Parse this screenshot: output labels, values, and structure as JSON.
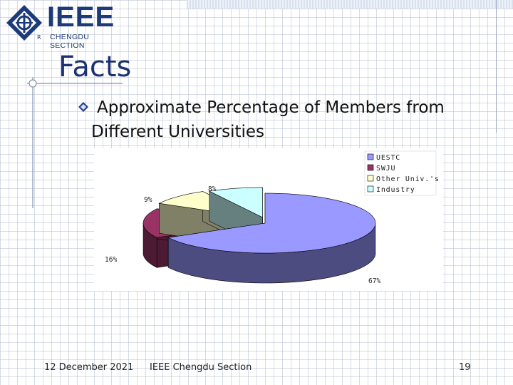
{
  "logo": {
    "wordmark": "IEEE",
    "subtitle": "CHENGDU SECTION",
    "reg_mark": "R"
  },
  "slide": {
    "title": "Facts",
    "bullet": "Approximate Percentage of Members from Different Universities"
  },
  "chart_data": {
    "type": "pie",
    "three_d": true,
    "legend_position": "right",
    "title": "",
    "slices": [
      {
        "label": "UESTC",
        "value": 67,
        "data_label": "67%",
        "color": "#9999ff",
        "side_color": "#4c4c80"
      },
      {
        "label": "SWJU",
        "value": 16,
        "data_label": "16%",
        "color": "#993366",
        "side_color": "#4d1a33"
      },
      {
        "label": "Other Univ.'s",
        "value": 9,
        "data_label": "9%",
        "color": "#ffffcc",
        "side_color": "#808066"
      },
      {
        "label": "Industry",
        "value": 8,
        "data_label": "8%",
        "color": "#ccffff",
        "side_color": "#668080"
      }
    ]
  },
  "footer": {
    "date": "12 December 2021",
    "org": "IEEE Chengdu Section",
    "page": "19"
  }
}
